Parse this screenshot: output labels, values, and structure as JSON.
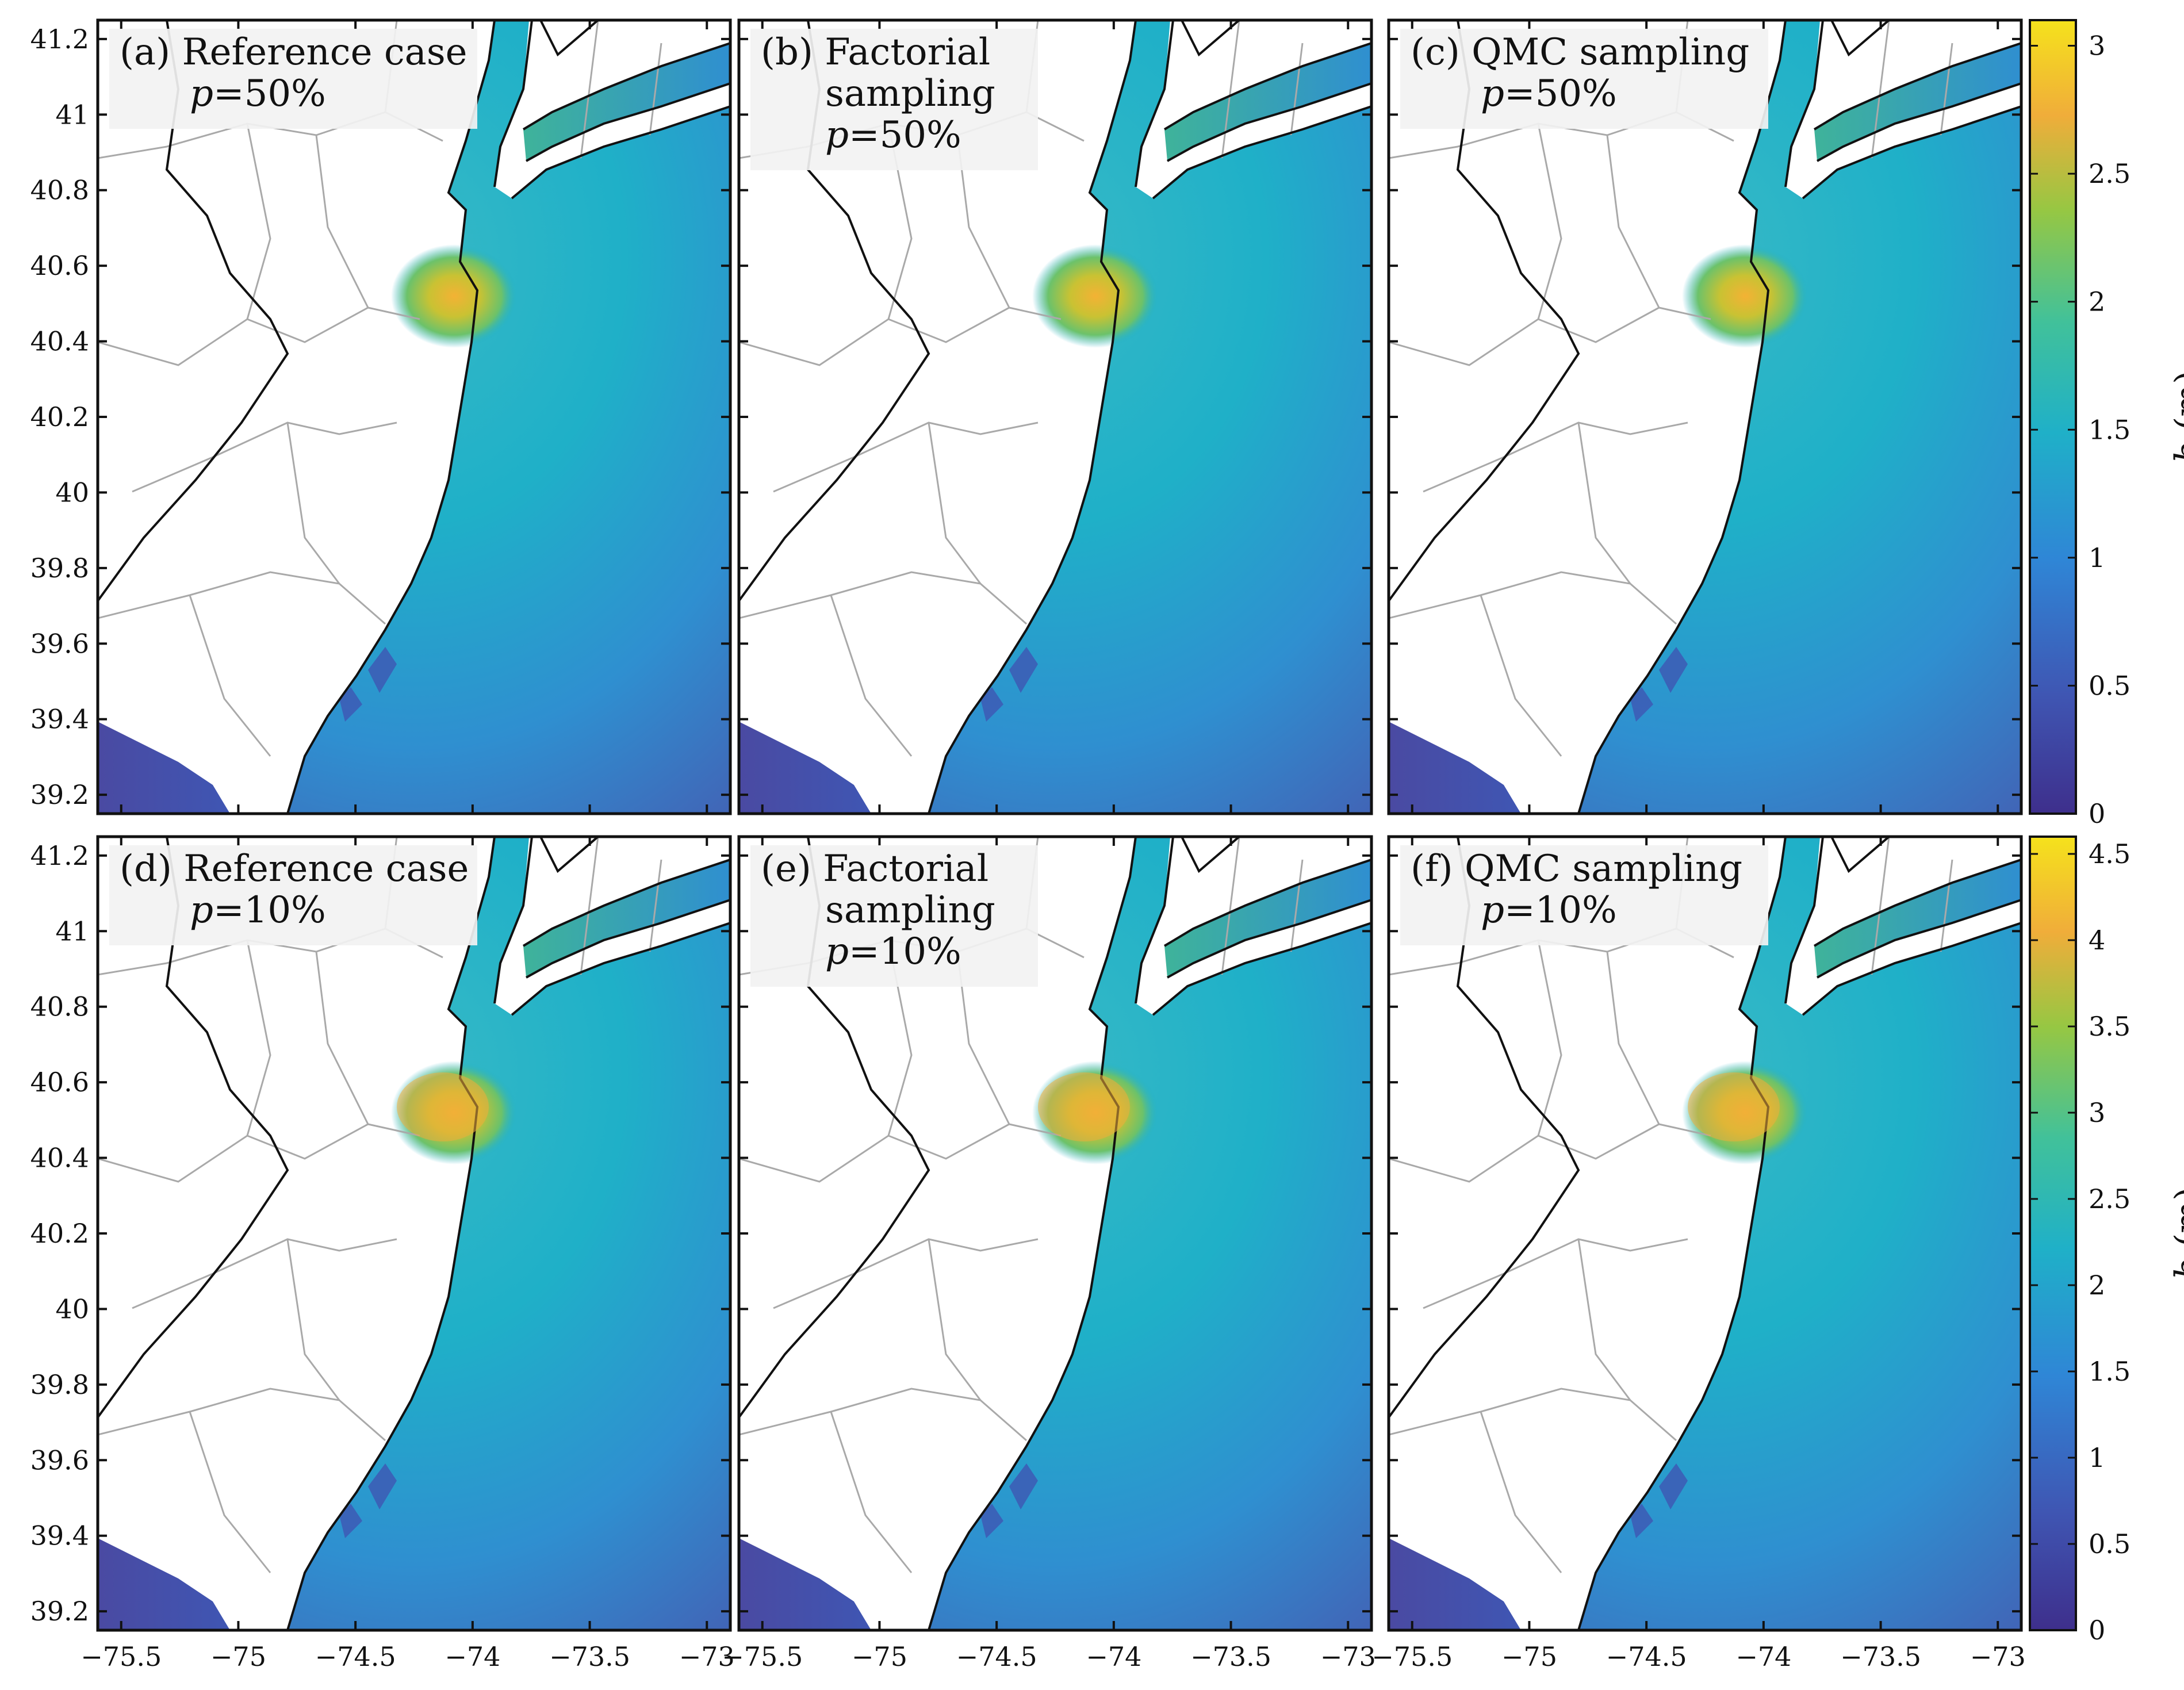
{
  "figure": {
    "panels": [
      {
        "id": "a",
        "label_lines": [
          "(a) Reference case",
          "p=50%"
        ],
        "scale": "50"
      },
      {
        "id": "b",
        "label_lines": [
          "(b) Factorial",
          "sampling",
          "p=50%"
        ],
        "scale": "50"
      },
      {
        "id": "c",
        "label_lines": [
          "(c) QMC sampling",
          "p=50%"
        ],
        "scale": "50"
      },
      {
        "id": "d",
        "label_lines": [
          "(d) Reference case",
          "p=10%"
        ],
        "scale": "10"
      },
      {
        "id": "e",
        "label_lines": [
          "(e) Factorial",
          "sampling",
          "p=10%"
        ],
        "scale": "10"
      },
      {
        "id": "f",
        "label_lines": [
          "(f) QMC sampling",
          "p=10%"
        ],
        "scale": "10"
      }
    ],
    "x_ticks": [
      "−75.5",
      "−75",
      "−74.5",
      "−74",
      "−73.5",
      "−73"
    ],
    "y_ticks": [
      "41.2",
      "41",
      "40.8",
      "40.6",
      "40.4",
      "40.2",
      "40",
      "39.8",
      "39.6",
      "39.4",
      "39.2"
    ],
    "colorbars": [
      {
        "title": "b (m)",
        "ticks": [
          "3",
          "2.5",
          "2",
          "1.5",
          "1",
          "0.5",
          "0"
        ],
        "vmin": 0,
        "vmax": 3.1
      },
      {
        "title": "b (m)",
        "ticks": [
          "4.5",
          "4",
          "3.5",
          "3",
          "2.5",
          "2",
          "1.5",
          "1",
          "0.5",
          "0"
        ],
        "vmin": 0,
        "vmax": 4.6
      }
    ],
    "colors": {
      "low": "#3e2f8c",
      "mid": "#1fa8c8",
      "high": "#f5e21c",
      "land": "#ffffff",
      "border_gray": "#a7a7a7",
      "coast": "#000000"
    }
  },
  "chart_data": {
    "type": "heatmap",
    "subplots": 6,
    "xlim": [
      -75.6,
      -72.9
    ],
    "ylim": [
      39.15,
      41.25
    ],
    "x_tick_values": [
      -75.5,
      -75,
      -74.5,
      -74,
      -73.5,
      -73
    ],
    "y_tick_values": [
      41.2,
      41,
      40.8,
      40.6,
      40.4,
      40.2,
      40,
      39.8,
      39.6,
      39.4,
      39.2
    ],
    "colorbar_top": {
      "label": "b (m)",
      "range": [
        0,
        3.1
      ],
      "ticks": [
        0,
        0.5,
        1,
        1.5,
        2,
        2.5,
        3
      ]
    },
    "colorbar_bottom": {
      "label": "b (m)",
      "range": [
        0,
        4.6
      ],
      "ticks": [
        0,
        0.5,
        1,
        1.5,
        2,
        2.5,
        3,
        3.5,
        4,
        4.5
      ]
    }
  }
}
